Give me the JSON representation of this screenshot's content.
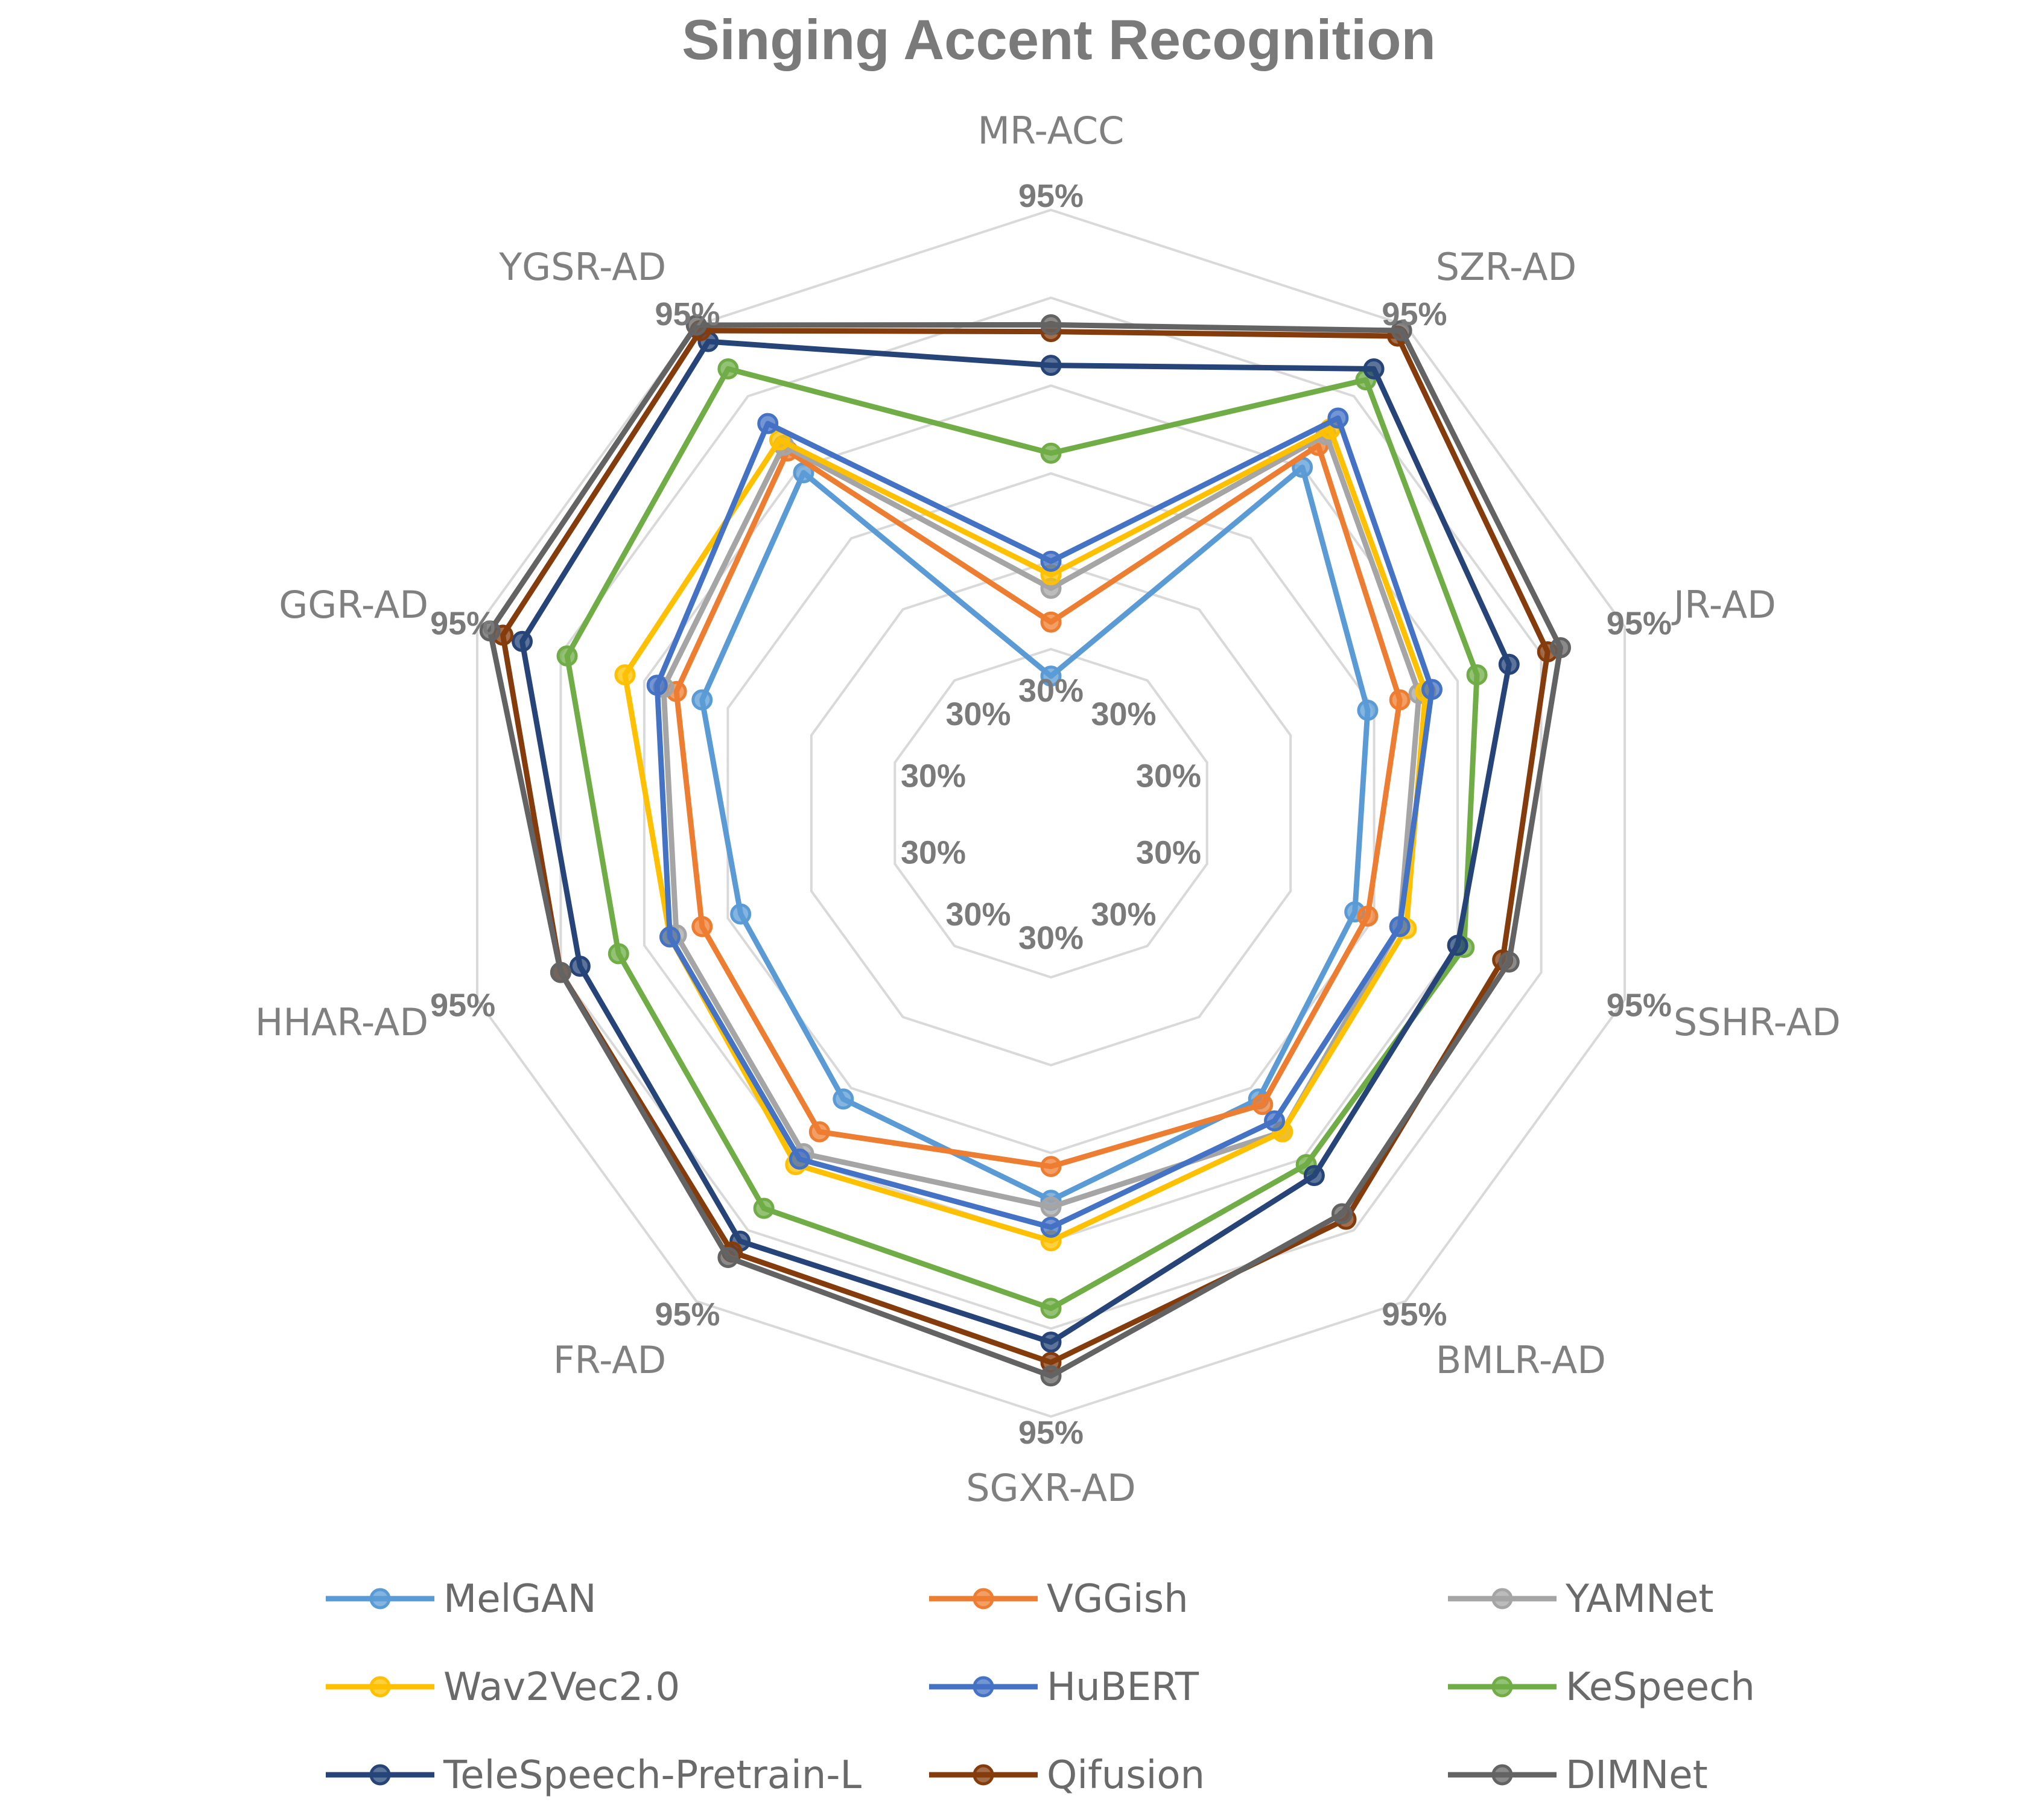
{
  "chart_data": {
    "type": "radar",
    "title": "Singing Accent Recognition",
    "axes": [
      "MR-ACC",
      "SZR-AD",
      "JR-AD",
      "SSHR-AD",
      "BMLR-AD",
      "SGXR-AD",
      "FR-AD",
      "HHAR-AD",
      "GGR-AD",
      "YGSR-AD"
    ],
    "tick_labels": [
      "30%",
      "95%"
    ],
    "range": [
      30,
      95
    ],
    "grid": true,
    "legend_position": "bottom",
    "series": [
      {
        "name": "MelGAN",
        "color": "#5b9bd5",
        "values": [
          26,
          69,
          55,
          53,
          58,
          63,
          58,
          54,
          60,
          68
        ]
      },
      {
        "name": "VGGish",
        "color": "#ed7d31",
        "values": [
          34,
          73,
          60,
          55,
          59,
          58,
          64,
          60,
          64,
          72
        ]
      },
      {
        "name": "YAMNet",
        "color": "#a5a5a5",
        "values": [
          39,
          75,
          63,
          60,
          64,
          64,
          68,
          64,
          66,
          73
        ]
      },
      {
        "name": "Wav2Vec2.0",
        "color": "#ffc000",
        "values": [
          41,
          76,
          64,
          61,
          64,
          69,
          70,
          65,
          72,
          74
        ]
      },
      {
        "name": "HuBERT",
        "color": "#4472c4",
        "values": [
          43,
          78,
          65,
          60,
          62,
          67,
          69,
          65,
          67,
          77
        ]
      },
      {
        "name": "KeSpeech",
        "color": "#70ad47",
        "values": [
          59,
          85,
          72,
          70,
          70,
          79,
          78,
          73,
          81,
          87
        ]
      },
      {
        "name": "TeleSpeech-Pretrain-L",
        "color": "#264478",
        "values": [
          72,
          87,
          77,
          69,
          72,
          84,
          84,
          79,
          88,
          92
        ]
      },
      {
        "name": "Qifusion",
        "color": "#843c0c",
        "values": [
          77,
          93,
          83,
          76,
          80,
          87,
          86,
          82,
          91,
          94
        ]
      },
      {
        "name": "DIMNet",
        "color": "#636363",
        "values": [
          78,
          94,
          85,
          77,
          79,
          89,
          87,
          82,
          93,
          95
        ]
      }
    ]
  }
}
